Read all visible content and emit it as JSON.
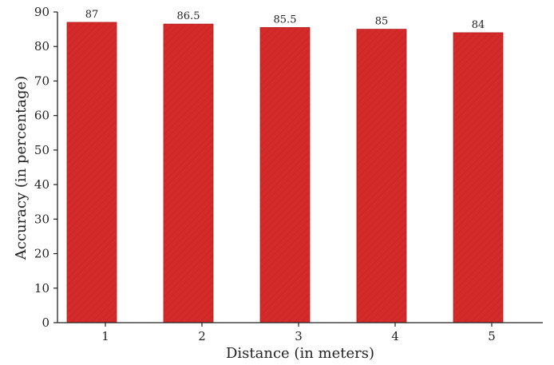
{
  "chart_data": {
    "type": "bar",
    "categories": [
      "1",
      "2",
      "3",
      "4",
      "5"
    ],
    "values": [
      87,
      86.5,
      85.5,
      85,
      84
    ],
    "data_labels": [
      "87",
      "86.5",
      "85.5",
      "85",
      "84"
    ],
    "xlabel": "Distance (in meters)",
    "ylabel": "Accuracy (in percentage)",
    "ylim": [
      0,
      90
    ],
    "yticks": [
      "0",
      "10",
      "20",
      "30",
      "40",
      "50",
      "60",
      "70",
      "80",
      "90"
    ],
    "grid": false,
    "legend": "none",
    "bar_color": "#d42a2a",
    "bar_edge_color": "#b01e1e",
    "hatch": "diagonal"
  }
}
